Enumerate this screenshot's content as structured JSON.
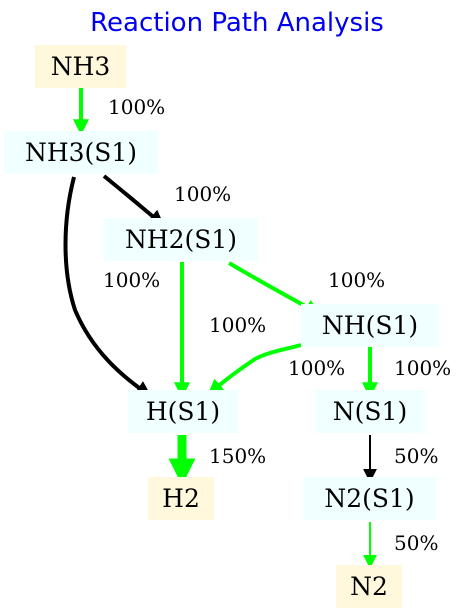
{
  "title": "Reaction Path Analysis",
  "colors": {
    "title": "#0000ee",
    "gas_fill": "#fff8dc",
    "surface_fill": "#f0ffff",
    "green": "#00ff00",
    "black": "#000000"
  },
  "nodes": {
    "nh3": {
      "label": "NH3",
      "kind": "gas"
    },
    "nh3_s1": {
      "label": "NH3(S1)",
      "kind": "surface"
    },
    "nh2_s1": {
      "label": "NH2(S1)",
      "kind": "surface"
    },
    "nh_s1": {
      "label": "NH(S1)",
      "kind": "surface"
    },
    "h_s1": {
      "label": "H(S1)",
      "kind": "surface"
    },
    "n_s1": {
      "label": "N(S1)",
      "kind": "surface"
    },
    "h2": {
      "label": "H2",
      "kind": "gas"
    },
    "n2_s1": {
      "label": "N2(S1)",
      "kind": "surface"
    },
    "n2": {
      "label": "N2",
      "kind": "gas"
    }
  },
  "edges": {
    "nh3_to_nh3s1": {
      "from": "NH3",
      "to": "NH3(S1)",
      "label": "100%",
      "color": "green"
    },
    "nh3s1_to_nh2s1": {
      "from": "NH3(S1)",
      "to": "NH2(S1)",
      "label": "100%",
      "color": "black"
    },
    "nh3s1_to_hs1": {
      "from": "NH3(S1)",
      "to": "H(S1)",
      "label": "",
      "color": "black"
    },
    "nh2s1_to_hs1": {
      "from": "NH2(S1)",
      "to": "H(S1)",
      "label": "100%",
      "color": "green"
    },
    "nh2s1_to_nhs1": {
      "from": "NH2(S1)",
      "to": "NH(S1)",
      "label": "100%",
      "color": "green"
    },
    "nhs1_to_hs1": {
      "from": "NH(S1)",
      "to": "H(S1)",
      "label": "100%",
      "color": "green"
    },
    "nhs1_to_ns1": {
      "from": "NH(S1)",
      "to": "N(S1)",
      "label": "100%",
      "color": "green"
    },
    "hs1_to_h2": {
      "from": "H(S1)",
      "to": "H2",
      "label": "150%",
      "color": "green"
    },
    "ns1_to_n2s1": {
      "from": "N(S1)",
      "to": "N2(S1)",
      "label": "50%",
      "color": "black"
    },
    "n2s1_to_n2": {
      "from": "N2(S1)",
      "to": "N2",
      "label": "50%",
      "color": "green"
    }
  },
  "extra_labels": {
    "nh2s1_to_nhs1_secondary": "100%"
  }
}
